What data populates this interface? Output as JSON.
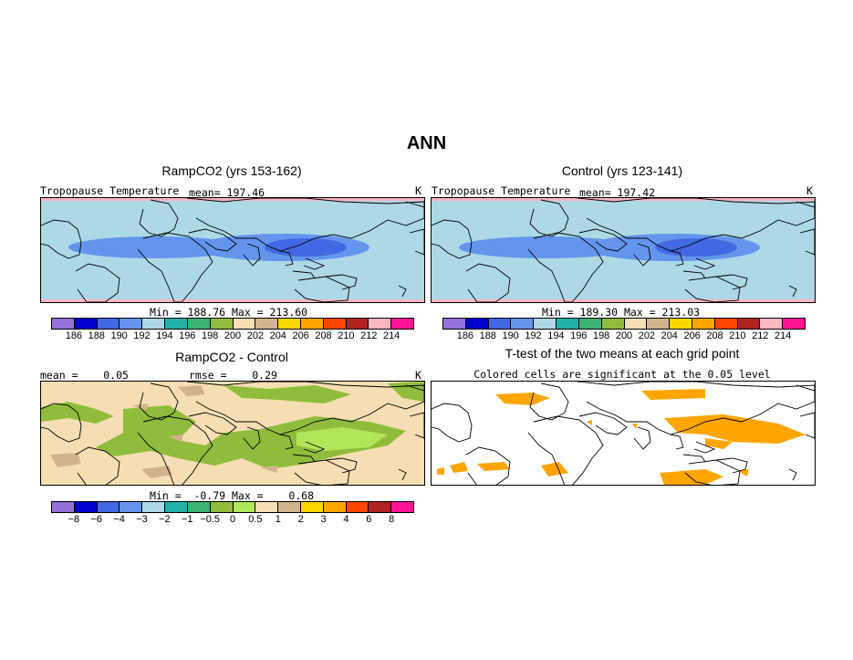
{
  "page_title": "ANN",
  "panels": {
    "ramp": {
      "title": "RampCO2 (yrs 153-162)",
      "variable": "Tropopause Temperature",
      "mean": "mean= 197.46",
      "units": "K",
      "minmax": "Min = 188.76 Max = 213.60"
    },
    "control": {
      "title": "Control (yrs 123-141)",
      "variable": "Tropopause Temperature",
      "mean": "mean= 197.42",
      "units": "K",
      "minmax": "Min = 189.30 Max = 213.03"
    },
    "diff": {
      "title": "RampCO2 - Control",
      "mean": "mean =    0.05",
      "rmse": "rmse =    0.29",
      "units": "K",
      "minmax": "Min =  -0.79 Max =    0.68"
    },
    "ttest": {
      "title": "T-test of the two means at each grid point",
      "subtitle": "Colored cells are significant at the 0.05 level"
    }
  },
  "colorbar_abs": {
    "colors": [
      "#9370db",
      "#0000cd",
      "#4169e1",
      "#6495ed",
      "#add8e6",
      "#20b2aa",
      "#3cb371",
      "#8fbc3c",
      "#f5deb3",
      "#d2b48c",
      "#ffd700",
      "#ffa500",
      "#ff4500",
      "#b22222",
      "#ffb6c1",
      "#ff1493"
    ],
    "labels": [
      "186",
      "188",
      "190",
      "192",
      "194",
      "196",
      "198",
      "200",
      "202",
      "204",
      "206",
      "208",
      "210",
      "212",
      "214"
    ]
  },
  "colorbar_diff": {
    "colors": [
      "#9370db",
      "#0000cd",
      "#4169e1",
      "#6495ed",
      "#add8e6",
      "#20b2aa",
      "#3cb371",
      "#8fbc3c",
      "#b2e65a",
      "#f5deb3",
      "#d2b48c",
      "#ffd700",
      "#ffa500",
      "#ff4500",
      "#b22222",
      "#ff1493"
    ],
    "labels": [
      "−8",
      "−6",
      "−4",
      "−3",
      "−2",
      "−1",
      "−0.5",
      "0",
      "0.5",
      "1",
      "2",
      "3",
      "4",
      "6",
      "8"
    ]
  },
  "map_colors": {
    "land_outline": "#000000",
    "significant": "#ffa500"
  }
}
